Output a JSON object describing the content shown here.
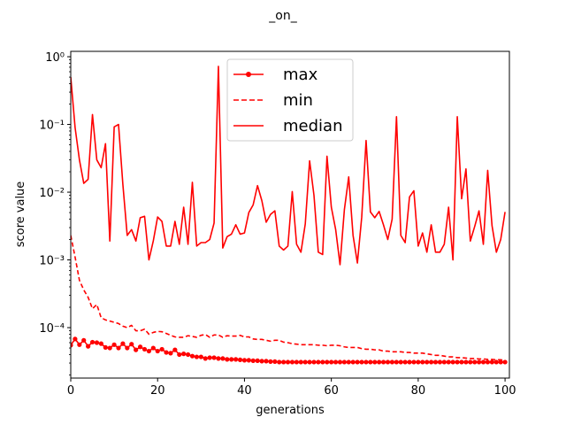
{
  "chart_data": {
    "type": "line",
    "title": "_on_",
    "xlabel": "generations",
    "ylabel": "score value",
    "xlim": [
      0,
      101
    ],
    "ylim": [
      1.8e-05,
      1.2
    ],
    "yscale": "log",
    "grid": false,
    "legend_position": "top-center",
    "color": "#ff0000",
    "x_ticks": [
      0,
      20,
      40,
      60,
      80,
      100
    ],
    "x_tick_labels": [
      "0",
      "20",
      "40",
      "60",
      "80",
      "100"
    ],
    "y_ticks": [
      0.0001,
      0.001,
      0.01,
      0.1,
      1
    ],
    "y_tick_labels": [
      "10⁻⁴",
      "10⁻³",
      "10⁻²",
      "10⁻¹",
      "10⁰"
    ],
    "series": [
      {
        "name": "max",
        "style": "solid-dot",
        "values": [
          5.5e-05,
          6.8e-05,
          5.6e-05,
          6.5e-05,
          5.3e-05,
          6.1e-05,
          6e-05,
          5.8e-05,
          5.1e-05,
          5e-05,
          5.6e-05,
          5e-05,
          5.8e-05,
          5e-05,
          5.7e-05,
          4.7e-05,
          5.2e-05,
          4.8e-05,
          4.5e-05,
          5e-05,
          4.5e-05,
          4.8e-05,
          4.3e-05,
          4.2e-05,
          4.7e-05,
          4e-05,
          4.1e-05,
          4e-05,
          3.8e-05,
          3.7e-05,
          3.7e-05,
          3.5e-05,
          3.6e-05,
          3.6e-05,
          3.5e-05,
          3.5e-05,
          3.4e-05,
          3.4e-05,
          3.4e-05,
          3.35e-05,
          3.3e-05,
          3.3e-05,
          3.25e-05,
          3.25e-05,
          3.2e-05,
          3.2e-05,
          3.15e-05,
          3.15e-05,
          3.1e-05,
          3.1e-05,
          3.1e-05,
          3.1e-05,
          3.1e-05,
          3.1e-05,
          3.1e-05,
          3.1e-05,
          3.1e-05,
          3.1e-05,
          3.1e-05,
          3.1e-05,
          3.1e-05,
          3.1e-05,
          3.1e-05,
          3.1e-05,
          3.1e-05,
          3.1e-05,
          3.1e-05,
          3.1e-05,
          3.1e-05,
          3.1e-05,
          3.1e-05,
          3.1e-05,
          3.1e-05,
          3.1e-05,
          3.1e-05,
          3.1e-05,
          3.1e-05,
          3.1e-05,
          3.1e-05,
          3.1e-05,
          3.1e-05,
          3.1e-05,
          3.1e-05,
          3.1e-05,
          3.1e-05,
          3.1e-05,
          3.1e-05,
          3.1e-05,
          3.1e-05,
          3.1e-05,
          3.1e-05,
          3.1e-05,
          3.1e-05,
          3.1e-05,
          3.1e-05,
          3.1e-05,
          3.1e-05,
          3.1e-05,
          3.1e-05,
          3.1e-05,
          3.1e-05
        ]
      },
      {
        "name": "min",
        "style": "dashed",
        "values": [
          0.0023,
          0.0011,
          0.0005,
          0.00036,
          0.00028,
          0.00019,
          0.00022,
          0.00014,
          0.00013,
          0.000125,
          0.00012,
          0.000115,
          0.000105,
          0.0001,
          0.000108,
          9e-05,
          9e-05,
          9.5e-05,
          8e-05,
          8.5e-05,
          8.8e-05,
          8.7e-05,
          8.2e-05,
          7.7e-05,
          7.3e-05,
          7.2e-05,
          7.2e-05,
          7.6e-05,
          7.4e-05,
          7.2e-05,
          7.7e-05,
          7.9e-05,
          7.2e-05,
          7.8e-05,
          7.8e-05,
          7.2e-05,
          7.6e-05,
          7.5e-05,
          7.5e-05,
          7.7e-05,
          7.3e-05,
          7.3e-05,
          6.8e-05,
          6.7e-05,
          6.7e-05,
          6.5e-05,
          6.3e-05,
          6.5e-05,
          6.5e-05,
          6.1e-05,
          6e-05,
          5.8e-05,
          5.7e-05,
          5.6e-05,
          5.6e-05,
          5.6e-05,
          5.6e-05,
          5.5e-05,
          5.5e-05,
          5.4e-05,
          5.5e-05,
          5.5e-05,
          5.4e-05,
          5.2e-05,
          5.1e-05,
          5.1e-05,
          5.1e-05,
          4.9e-05,
          4.8e-05,
          4.8e-05,
          4.7e-05,
          4.7e-05,
          4.5e-05,
          4.5e-05,
          4.4e-05,
          4.4e-05,
          4.4e-05,
          4.3e-05,
          4.3e-05,
          4.2e-05,
          4.2e-05,
          4.2e-05,
          4.1e-05,
          4e-05,
          3.9e-05,
          3.9e-05,
          3.8e-05,
          3.7e-05,
          3.7e-05,
          3.6e-05,
          3.6e-05,
          3.55e-05,
          3.5e-05,
          3.5e-05,
          3.45e-05,
          3.45e-05,
          3.4e-05,
          3.4e-05,
          3.35e-05,
          3.35e-05,
          3.3e-05
        ]
      },
      {
        "name": "median",
        "style": "solid",
        "values": [
          0.5,
          0.09,
          0.03,
          0.0135,
          0.0155,
          0.14,
          0.03,
          0.023,
          0.052,
          0.0019,
          0.092,
          0.1,
          0.013,
          0.0023,
          0.0028,
          0.0019,
          0.0042,
          0.0044,
          0.001,
          0.0019,
          0.0043,
          0.0037,
          0.0016,
          0.0016,
          0.0037,
          0.0017,
          0.006,
          0.0017,
          0.014,
          0.0016,
          0.0018,
          0.0018,
          0.002,
          0.0035,
          0.72,
          0.0015,
          0.0022,
          0.0024,
          0.0033,
          0.0024,
          0.0025,
          0.005,
          0.0065,
          0.0125,
          0.0075,
          0.0036,
          0.0047,
          0.0053,
          0.0016,
          0.0014,
          0.0016,
          0.0102,
          0.0017,
          0.0013,
          0.0034,
          0.029,
          0.009,
          0.0013,
          0.0012,
          0.034,
          0.006,
          0.0028,
          0.00085,
          0.0055,
          0.0168,
          0.0023,
          0.0009,
          0.0043,
          0.058,
          0.0051,
          0.0042,
          0.0052,
          0.0033,
          0.002,
          0.004,
          0.13,
          0.0023,
          0.0018,
          0.0085,
          0.0105,
          0.0016,
          0.0025,
          0.0013,
          0.0033,
          0.0013,
          0.0013,
          0.0017,
          0.006,
          0.001,
          0.13,
          0.008,
          0.022,
          0.0019,
          0.0031,
          0.0053,
          0.0017,
          0.021,
          0.0032,
          0.0013,
          0.002,
          0.0051
        ]
      }
    ]
  }
}
